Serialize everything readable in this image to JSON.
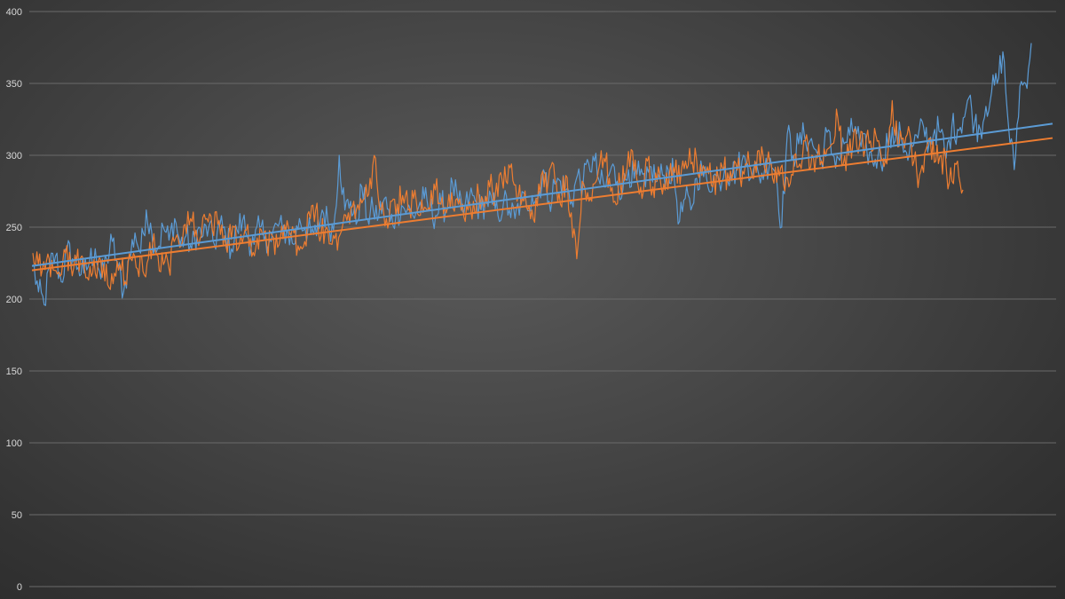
{
  "chart_data": {
    "type": "line",
    "ylim": [
      0,
      400
    ],
    "yticks": [
      0,
      50,
      100,
      150,
      200,
      250,
      300,
      350,
      400
    ],
    "grid": true,
    "legend": "none",
    "x_range": [
      1,
      720
    ],
    "series": [
      {
        "color": "#5b9bd5",
        "values": [
          224,
          205,
          196,
          223,
          230,
          212,
          234,
          228,
          222,
          218,
          226,
          235,
          214,
          228,
          240,
          222,
          205,
          228,
          246,
          232,
          262,
          245,
          235,
          250,
          241,
          256,
          238,
          244,
          235,
          248,
          244,
          250,
          238,
          252,
          244,
          235,
          248,
          255,
          242,
          238,
          250,
          244,
          240,
          252,
          248,
          246,
          238,
          256,
          250,
          245,
          244,
          262,
          254,
          248,
          300,
          262,
          268,
          252,
          278,
          256,
          262,
          258,
          270,
          254,
          258,
          265,
          262,
          258,
          264,
          270,
          262,
          258,
          266,
          262,
          280,
          266,
          260,
          272,
          268,
          262,
          270,
          266,
          258,
          268,
          262,
          256,
          268,
          266,
          272,
          270,
          290,
          268,
          280,
          282,
          276,
          268,
          286,
          280,
          294,
          296,
          280,
          278,
          292,
          282,
          276,
          290,
          284,
          286,
          278,
          292,
          282,
          286,
          290,
          286,
          254,
          270,
          262,
          284,
          290,
          278,
          286,
          282,
          292,
          286,
          290,
          296,
          294,
          290,
          286,
          290,
          298,
          288,
          250,
          315,
          300,
          308,
          314,
          310,
          304,
          296,
          316,
          300,
          298,
          308,
          314,
          320,
          306,
          304,
          296,
          300,
          298,
          318,
          310,
          314,
          302,
          306,
          312,
          320,
          308,
          318,
          316,
          298,
          320,
          318,
          326,
          340,
          322,
          318,
          334,
          344,
          350,
          372,
          320,
          290,
          348,
          350,
          378
        ]
      },
      {
        "color": "#ed7d31",
        "values": [
          232,
          224,
          226,
          228,
          220,
          216,
          232,
          224,
          226,
          230,
          215,
          218,
          226,
          224,
          208,
          218,
          224,
          212,
          228,
          222,
          230,
          225,
          238,
          230,
          224,
          222,
          240,
          236,
          252,
          256,
          248,
          244,
          256,
          248,
          252,
          238,
          244,
          250,
          238,
          248,
          242,
          236,
          248,
          238,
          244,
          236,
          242,
          250,
          246,
          234,
          240,
          256,
          262,
          244,
          250,
          238,
          234,
          252,
          260,
          268,
          262,
          270,
          284,
          298,
          262,
          256,
          268,
          266,
          272,
          262,
          270,
          258,
          264,
          262,
          276,
          266,
          260,
          274,
          270,
          266,
          262,
          268,
          272,
          264,
          278,
          272,
          288,
          282,
          294,
          268,
          270,
          262,
          256,
          280,
          278,
          290,
          282,
          266,
          286,
          260,
          228,
          282,
          274,
          280,
          290,
          298,
          284,
          268,
          280,
          286,
          304,
          284,
          270,
          296,
          278,
          292,
          280,
          286,
          288,
          280,
          296,
          294,
          298,
          286,
          292,
          278,
          284,
          290,
          282,
          296,
          286,
          294,
          290,
          288,
          306,
          296,
          284,
          292,
          280,
          278,
          300,
          294,
          310,
          292,
          300,
          296,
          304,
          308,
          326,
          294,
          300,
          318,
          308,
          304,
          310,
          314,
          298,
          294,
          338,
          306,
          312,
          320,
          296,
          286,
          302,
          312,
          296,
          300,
          288,
          282,
          296,
          276
        ]
      }
    ],
    "trendlines": [
      {
        "color": "#5b9bd5",
        "start": 223,
        "end": 322
      },
      {
        "color": "#ed7d31",
        "start": 220,
        "end": 312
      }
    ]
  }
}
